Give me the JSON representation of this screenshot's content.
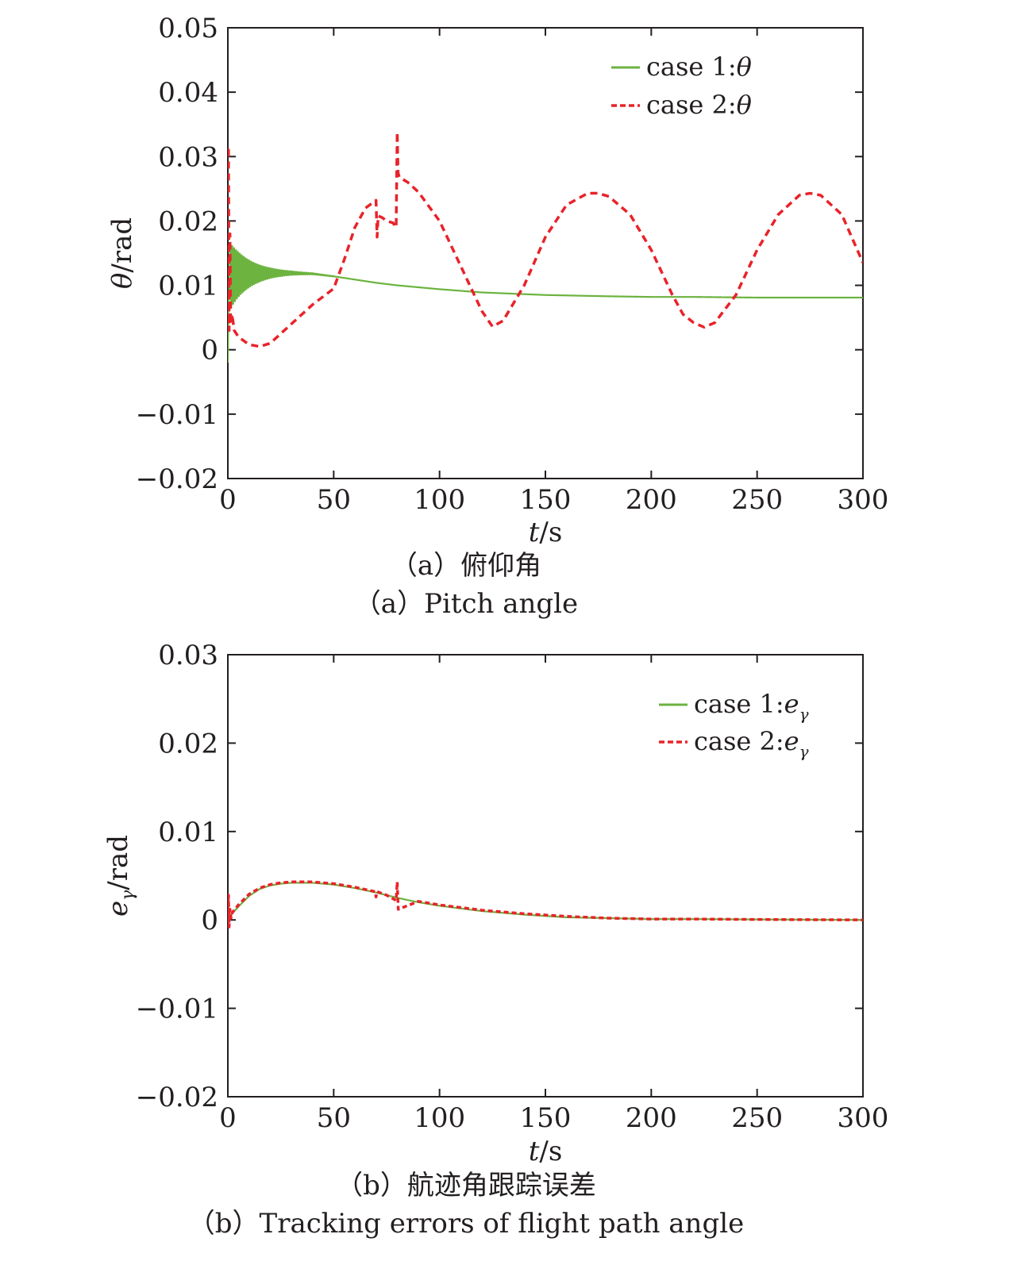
{
  "chart_data": [
    {
      "type": "line",
      "xlabel_var": "t",
      "xlabel_unit": "/s",
      "ylabel_var": "θ",
      "ylabel_unit": "/rad",
      "xlim": [
        0,
        300
      ],
      "ylim": [
        -0.02,
        0.05
      ],
      "xticks": [
        0,
        50,
        100,
        150,
        200,
        250,
        300
      ],
      "yticks": [
        -0.02,
        -0.01,
        0,
        0.01,
        0.02,
        0.03,
        0.04,
        0.05
      ],
      "ytick_labels": [
        "−0.02",
        "−0.01",
        "0",
        "0.01",
        "0.02",
        "0.03",
        "0.04",
        "0.05"
      ],
      "caption_cn": "（a）俯仰角",
      "caption_en": "（a）Pitch angle",
      "legend_position": "top-right",
      "series": [
        {
          "name_prefix": "case 1:",
          "name_var": "θ",
          "name_sub": "",
          "color": "#6cb33f",
          "style": "solid",
          "oscillation": {
            "start": 1,
            "end": 50,
            "period": 0.9,
            "amplitude_at_start": 0.0052
          },
          "x": [
            0,
            0.3,
            1,
            2,
            5,
            10,
            20,
            30,
            40,
            50,
            60,
            70,
            80,
            100,
            120,
            150,
            180,
            200,
            220,
            250,
            280,
            300
          ],
          "y": [
            -0.002,
            0.008,
            0.0112,
            0.0115,
            0.0117,
            0.0118,
            0.0119,
            0.0119,
            0.0118,
            0.0114,
            0.0109,
            0.0104,
            0.01,
            0.0094,
            0.0089,
            0.0085,
            0.0083,
            0.0082,
            0.0082,
            0.0081,
            0.0081,
            0.0081
          ]
        },
        {
          "name_prefix": "case 2:",
          "name_var": "θ",
          "name_sub": "",
          "color": "#e8232a",
          "style": "dashed",
          "x": [
            0,
            0.3,
            0.6,
            1,
            1.3,
            1.6,
            2,
            3,
            5,
            10,
            15,
            20,
            30,
            40,
            50,
            55,
            60,
            65,
            70,
            70.5,
            71,
            73,
            75,
            78,
            79.5,
            80,
            80.4,
            81,
            85,
            90,
            100,
            110,
            115,
            120,
            125,
            130,
            140,
            150,
            160,
            170,
            175,
            180,
            190,
            200,
            210,
            215,
            220,
            225,
            230,
            240,
            250,
            260,
            270,
            275,
            280,
            290,
            300
          ],
          "y": [
            0.031,
            0.031,
            0.003,
            0.018,
            0.005,
            0.004,
            0.0055,
            0.003,
            0.002,
            0.0008,
            0.0005,
            0.001,
            0.004,
            0.007,
            0.0095,
            0.014,
            0.019,
            0.022,
            0.0232,
            0.0175,
            0.0208,
            0.0205,
            0.02,
            0.0197,
            0.019,
            0.0338,
            0.0275,
            0.0268,
            0.026,
            0.0245,
            0.02,
            0.013,
            0.0095,
            0.006,
            0.0036,
            0.0045,
            0.01,
            0.0175,
            0.0225,
            0.0243,
            0.0243,
            0.0238,
            0.021,
            0.0155,
            0.0085,
            0.0055,
            0.0042,
            0.0035,
            0.0042,
            0.0085,
            0.0155,
            0.021,
            0.024,
            0.0243,
            0.024,
            0.021,
            0.0135
          ]
        }
      ]
    },
    {
      "type": "line",
      "xlabel_var": "t",
      "xlabel_unit": "/s",
      "ylabel_var": "e",
      "ylabel_sub": "γ",
      "ylabel_unit": "/rad",
      "xlim": [
        0,
        300
      ],
      "ylim": [
        -0.02,
        0.03
      ],
      "xticks": [
        0,
        50,
        100,
        150,
        200,
        250,
        300
      ],
      "yticks": [
        -0.02,
        -0.01,
        0,
        0.01,
        0.02,
        0.03
      ],
      "ytick_labels": [
        "−0.02",
        "−0.01",
        "0",
        "0.01",
        "0.02",
        "0.03"
      ],
      "caption_cn": "（b）航迹角跟踪误差",
      "caption_en": "（b）Tracking errors of flight path angle",
      "legend_position": "top-right",
      "series": [
        {
          "name_prefix": "case 1:",
          "name_var": "e",
          "name_sub": "γ",
          "color": "#6cb33f",
          "style": "solid",
          "x": [
            0,
            0.5,
            1,
            2,
            5,
            10,
            15,
            20,
            25,
            30,
            35,
            40,
            50,
            60,
            70,
            80,
            90,
            100,
            120,
            140,
            160,
            180,
            200,
            220,
            250,
            280,
            300
          ],
          "y": [
            0,
            0.0003,
            0.0004,
            0.0007,
            0.0015,
            0.0027,
            0.0035,
            0.0039,
            0.0041,
            0.0042,
            0.0042,
            0.0042,
            0.004,
            0.0036,
            0.0031,
            0.0025,
            0.002,
            0.0016,
            0.001,
            0.0006,
            0.0003,
            0.0002,
            0.0001,
            0.0001,
            5e-05,
            2e-05,
            0
          ]
        },
        {
          "name_prefix": "case 2:",
          "name_var": "e",
          "name_sub": "γ",
          "color": "#e8232a",
          "style": "dashed",
          "x": [
            0,
            0.3,
            0.6,
            1,
            1.5,
            2,
            5,
            10,
            15,
            20,
            25,
            30,
            35,
            40,
            50,
            60,
            69.5,
            70,
            70.5,
            75,
            79.5,
            80,
            80.5,
            90,
            100,
            120,
            140,
            160,
            180,
            200,
            220,
            250,
            280,
            300
          ],
          "y": [
            0,
            0.0028,
            -0.0008,
            0.0012,
            0.0002,
            0.0008,
            0.0017,
            0.0029,
            0.0036,
            0.004,
            0.0042,
            0.0043,
            0.0043,
            0.0043,
            0.0041,
            0.0037,
            0.0032,
            0.0026,
            0.0032,
            0.0028,
            0.0022,
            0.0043,
            0.0012,
            0.0021,
            0.0017,
            0.0011,
            0.0007,
            0.0004,
            0.0002,
            0.0001,
            0.0001,
            5e-05,
            2e-05,
            0
          ]
        }
      ]
    }
  ]
}
